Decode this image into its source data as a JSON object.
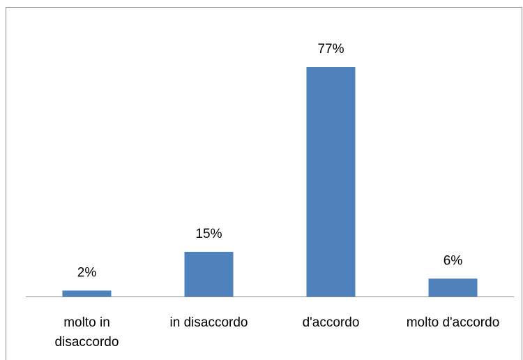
{
  "chart_data": {
    "type": "bar",
    "categories": [
      "molto in disaccordo",
      "in disaccordo",
      "d'accordo",
      "molto d'accordo"
    ],
    "values": [
      2,
      15,
      77,
      6
    ],
    "value_labels": [
      "2%",
      "15%",
      "77%",
      "6%"
    ],
    "color": "#4f81bd"
  }
}
